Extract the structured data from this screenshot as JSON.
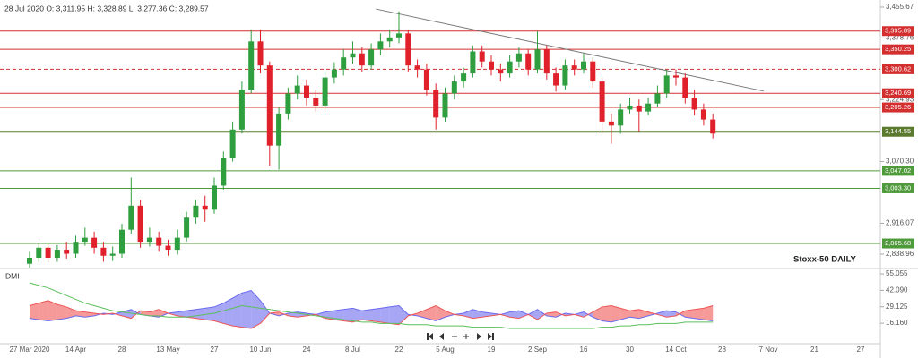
{
  "chart_data": [
    {
      "type": "candlestick",
      "annotations": [
        "28 Jul 2020 O: 3,311.95 H: 3,328.89 L: 3,277.36 C: 3,289.57",
        "Stoxx-50 DAILY"
      ],
      "categories": [
        "27 Mar 2020",
        null,
        null,
        null,
        null,
        "14 Apr",
        null,
        null,
        null,
        null,
        "28",
        null,
        null,
        null,
        null,
        "13 May",
        null,
        null,
        null,
        null,
        "27",
        null,
        null,
        null,
        null,
        "10 Jun",
        null,
        null,
        null,
        null,
        "24",
        null,
        null,
        null,
        null,
        "8 Jul",
        null,
        null,
        null,
        null,
        "22",
        null,
        null,
        null,
        null,
        "5 Aug",
        null,
        null,
        null,
        null,
        "19",
        null,
        null,
        null,
        null,
        "2 Sep",
        null,
        null,
        null,
        null,
        "16",
        null,
        null,
        null,
        null,
        "30",
        null,
        null,
        null,
        null,
        "14 Oct",
        null,
        null,
        null,
        null,
        "28",
        null,
        null,
        null,
        null,
        "7 Nov",
        null,
        null,
        null,
        null,
        "21",
        null,
        null,
        null,
        null,
        "27"
      ],
      "open": [
        2815,
        2830,
        2855,
        2830,
        2850,
        2840,
        2870,
        2880,
        2855,
        2835,
        2840,
        2900,
        2960,
        2870,
        2880,
        2860,
        2850,
        2880,
        2930,
        2960,
        2950,
        3010,
        3080,
        3150,
        3250,
        3370,
        3310,
        3110,
        3190,
        3240,
        3260,
        3230,
        3210,
        3280,
        3300,
        3330,
        3340,
        3310,
        3350,
        3370,
        3380,
        3390,
        3310,
        3300,
        3250,
        3180,
        3240,
        3270,
        3290,
        3345,
        3320,
        3300,
        3290,
        3320,
        3340,
        3300,
        3350,
        3290,
        3260,
        3310,
        3300,
        3320,
        3270,
        3170,
        3160,
        3200,
        3210,
        3195,
        3215,
        3240,
        3285,
        3280,
        3230,
        3200,
        3175,
        null,
        null,
        null,
        null,
        null,
        null,
        null,
        null,
        null,
        null,
        null,
        null,
        null,
        null,
        null,
        null
      ],
      "high": [
        2845,
        2868,
        2865,
        2862,
        2870,
        2885,
        2905,
        2895,
        2870,
        2858,
        2915,
        3030,
        2975,
        2905,
        2895,
        2875,
        2900,
        2945,
        2975,
        2985,
        3030,
        3095,
        3170,
        3270,
        3400,
        3400,
        3320,
        3205,
        3255,
        3285,
        3275,
        3250,
        3295,
        3318,
        3350,
        3370,
        3355,
        3365,
        3390,
        3400,
        3445,
        3400,
        3325,
        3315,
        3265,
        3255,
        3285,
        3305,
        3360,
        3360,
        3335,
        3315,
        3335,
        3355,
        3350,
        3395,
        3360,
        3305,
        3325,
        3325,
        3340,
        3330,
        3280,
        3190,
        3215,
        3230,
        3225,
        3230,
        3260,
        3300,
        3300,
        3290,
        3250,
        3215,
        3190,
        null,
        null,
        null,
        null,
        null,
        null,
        null,
        null,
        null,
        null,
        null,
        null,
        null,
        null,
        null,
        null
      ],
      "low": [
        2805,
        2820,
        2818,
        2820,
        2828,
        2830,
        2860,
        2840,
        2820,
        2822,
        2830,
        2890,
        2855,
        2858,
        2845,
        2835,
        2838,
        2870,
        2915,
        2920,
        2940,
        3000,
        3070,
        3140,
        3240,
        3290,
        3060,
        3050,
        3175,
        3225,
        3210,
        3195,
        3200,
        3265,
        3285,
        3315,
        3295,
        3300,
        3335,
        3355,
        3365,
        3295,
        3280,
        3235,
        3150,
        3170,
        3225,
        3255,
        3280,
        3305,
        3285,
        3270,
        3280,
        3305,
        3285,
        3290,
        3275,
        3245,
        3250,
        3285,
        3290,
        3255,
        3140,
        3115,
        3140,
        3190,
        3145,
        3185,
        3205,
        3230,
        3260,
        3215,
        3185,
        3160,
        3128,
        null,
        null,
        null,
        null,
        null,
        null,
        null,
        null,
        null,
        null,
        null,
        null,
        null,
        null,
        null,
        null
      ],
      "close": [
        2830,
        2855,
        2830,
        2850,
        2840,
        2870,
        2880,
        2855,
        2835,
        2840,
        2900,
        2960,
        2870,
        2880,
        2860,
        2850,
        2880,
        2930,
        2960,
        2950,
        3010,
        3080,
        3150,
        3250,
        3370,
        3310,
        3110,
        3190,
        3240,
        3260,
        3230,
        3210,
        3280,
        3300,
        3330,
        3340,
        3310,
        3350,
        3370,
        3380,
        3390,
        3310,
        3300,
        3250,
        3180,
        3240,
        3270,
        3290,
        3345,
        3320,
        3300,
        3290,
        3320,
        3340,
        3300,
        3350,
        3290,
        3260,
        3310,
        3300,
        3320,
        3270,
        3170,
        3160,
        3200,
        3210,
        3195,
        3215,
        3240,
        3285,
        3280,
        3230,
        3200,
        3175,
        3140,
        null,
        null,
        null,
        null,
        null,
        null,
        null,
        null,
        null,
        null,
        null,
        null,
        null,
        null,
        null,
        null
      ],
      "up_color": "#2e9e3e",
      "down_color": "#e0202a",
      "ylim": [
        2803.2,
        3473.5
      ],
      "yticks": [
        {
          "value": 3455.67,
          "label": "3,455.67"
        },
        {
          "value": 3378.76,
          "label": "3,378.76"
        },
        {
          "value": 3224.93,
          "label": "3,224.93"
        },
        {
          "value": 3070.3,
          "label": "3,070.30"
        },
        {
          "value": 2916.07,
          "label": "2,916.07"
        },
        {
          "value": 2838.96,
          "label": "2,838.96"
        }
      ],
      "levels": [
        {
          "value": 3395.89,
          "label": "3,395.89",
          "color": "#d32f2f",
          "style": "solid"
        },
        {
          "value": 3350.25,
          "label": "3,350.25",
          "color": "#d32f2f",
          "style": "solid"
        },
        {
          "value": 3300.62,
          "label": "3,300.62",
          "color": "#d32f2f",
          "style": "dashed"
        },
        {
          "value": 3240.69,
          "label": "3,240.69",
          "color": "#d32f2f",
          "style": "solid"
        },
        {
          "value": 3205.26,
          "label": "3,205.26",
          "color": "#d32f2f",
          "style": "solid"
        },
        {
          "value": 3144.55,
          "label": "3,144.55",
          "color": "#5b7a2e",
          "style": "thick"
        },
        {
          "value": 3047.02,
          "label": "3,047.02",
          "color": "#4f9a3a",
          "style": "solid"
        },
        {
          "value": 3003.3,
          "label": "3,003.30",
          "color": "#4f9a3a",
          "style": "solid"
        },
        {
          "value": 2865.68,
          "label": "2,865.68",
          "color": "#4f9a3a",
          "style": "solid"
        }
      ],
      "trendline": {
        "x": [
          37.5,
          79.5
        ],
        "values": [
          3451,
          3246
        ],
        "color": "#777"
      }
    },
    {
      "type": "dmi",
      "title": "DMI",
      "series": [
        {
          "color": "#6b6bef",
          "values": [
            20,
            19,
            18,
            19,
            20,
            22,
            21,
            22,
            24,
            23,
            25,
            27,
            23,
            22,
            21,
            24,
            25,
            26,
            27,
            28,
            29,
            32,
            36,
            40,
            42,
            34,
            24,
            22,
            24,
            25,
            24,
            23,
            25,
            26,
            27,
            28,
            26,
            27,
            28,
            29,
            30,
            23,
            22,
            20,
            18,
            21,
            23,
            24,
            27,
            25,
            24,
            23,
            25,
            26,
            23,
            27,
            22,
            21,
            24,
            23,
            25,
            21,
            18,
            17,
            19,
            21,
            20,
            22,
            24,
            26,
            25,
            21,
            20,
            19,
            18,
            null,
            null,
            null,
            null,
            null,
            null,
            null,
            null,
            null,
            null,
            null,
            null,
            null,
            null,
            null,
            null
          ]
        },
        {
          "color": "#ef5555",
          "values": [
            30,
            32,
            34,
            31,
            29,
            26,
            25,
            24,
            23,
            24,
            22,
            20,
            26,
            25,
            27,
            24,
            22,
            21,
            20,
            19,
            18,
            16,
            14,
            13,
            12,
            16,
            24,
            25,
            22,
            21,
            22,
            23,
            20,
            19,
            18,
            17,
            19,
            18,
            17,
            16,
            15,
            22,
            24,
            27,
            30,
            26,
            23,
            22,
            20,
            21,
            22,
            23,
            21,
            20,
            23,
            19,
            24,
            25,
            22,
            23,
            21,
            25,
            29,
            30,
            28,
            26,
            27,
            25,
            23,
            21,
            22,
            26,
            27,
            28,
            30,
            null,
            null,
            null,
            null,
            null,
            null,
            null,
            null,
            null,
            null,
            null,
            null,
            null,
            null,
            null,
            null
          ]
        },
        {
          "color": "#5cbf5c",
          "values": [
            48,
            46,
            44,
            41,
            38,
            35,
            32,
            30,
            28,
            26,
            25,
            24,
            23,
            22,
            22,
            21,
            21,
            21,
            22,
            23,
            24,
            26,
            28,
            30,
            29,
            28,
            27,
            26,
            25,
            24,
            23,
            22,
            21,
            20,
            19,
            18,
            17,
            17,
            16,
            16,
            16,
            15,
            15,
            15,
            14,
            14,
            14,
            14,
            13,
            13,
            13,
            13,
            12,
            12,
            12,
            12,
            12,
            12,
            12,
            12,
            12,
            12,
            13,
            13,
            14,
            14,
            15,
            15,
            16,
            16,
            16,
            17,
            17,
            17,
            17,
            null,
            null,
            null,
            null,
            null,
            null,
            null,
            null,
            null,
            null,
            null,
            null,
            null,
            null,
            null,
            null
          ]
        }
      ],
      "fill_between": [
        0,
        1
      ],
      "ylim": [
        0,
        59.3
      ],
      "yticks": [
        55.055,
        {
          "value": 42.09,
          "label": "42.090"
        },
        29.125,
        {
          "value": 16.16,
          "label": "16.160"
        }
      ]
    }
  ]
}
